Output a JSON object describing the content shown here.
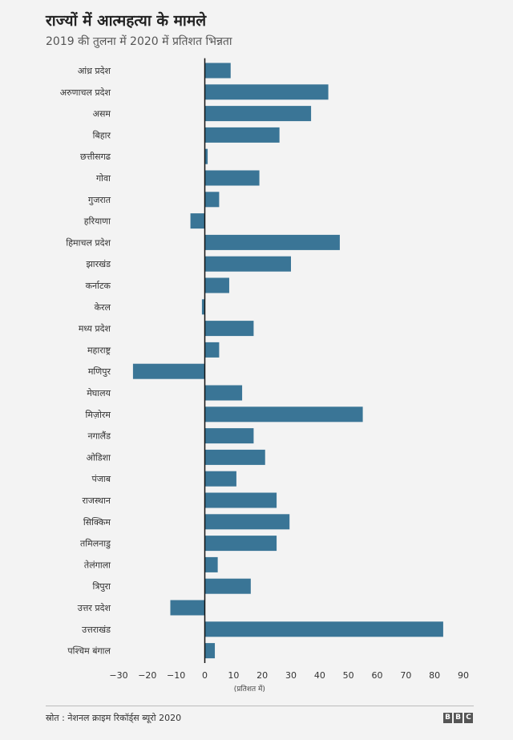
{
  "header": {
    "title": "राज्यों में आत्महत्या के मामले",
    "subtitle": "2019 की तुलना में 2020 में प्रतिशत भिन्नता"
  },
  "footer": {
    "source": "स्रोत : नेशनल क्राइम रिकॉर्ड्स ब्यूरो 2020",
    "logo": [
      "B",
      "B",
      "C"
    ]
  },
  "colors": {
    "bar": "#3a7596",
    "axis": "#111111",
    "text": "#333333"
  },
  "chart_data": {
    "type": "bar",
    "orientation": "horizontal",
    "title": "राज्यों में आत्महत्या के मामले",
    "subtitle": "2019 की तुलना में 2020 में प्रतिशत भिन्नता",
    "xlabel": "(प्रतिशत में)",
    "xlim": [
      -30,
      90
    ],
    "xticks": [
      -30,
      -20,
      -10,
      0,
      10,
      20,
      30,
      40,
      50,
      60,
      70,
      80,
      90
    ],
    "tick_labels": [
      "−30",
      "−20",
      "−10",
      "0",
      "10",
      "20",
      "30",
      "40",
      "50",
      "60",
      "70",
      "80",
      "90"
    ],
    "categories": [
      "आंध्र प्रदेश",
      "अरुणाचल प्रदेश",
      "असम",
      "बिहार",
      "छत्तीसगढ",
      "गोवा",
      "गुजरात",
      "हरियाणा",
      "हिमाचल प्रदेश",
      "झारखंड",
      "कर्नाटक",
      "केरल",
      "मध्य प्रदेश",
      "महाराष्ट्र",
      "मणिपुर",
      "मेघालय",
      "मिज़ोरम",
      "नगालैंड",
      "ओडिशा",
      "पंजाब",
      "राजस्थान",
      "सिक्किम",
      "तमिलनाडु",
      "तेलंगाला",
      "त्रिपुरा",
      "उत्तर प्रदेश",
      "उत्तराखंड",
      "पश्चिम बंगाल"
    ],
    "values": [
      9,
      43,
      37,
      26,
      1,
      19,
      5,
      -5,
      47,
      30,
      8.5,
      -1,
      17,
      5,
      -25,
      13,
      55,
      17,
      21,
      11,
      25,
      29.5,
      25,
      4.5,
      16,
      -12,
      83,
      3.5
    ],
    "grid": false,
    "legend": "none"
  }
}
